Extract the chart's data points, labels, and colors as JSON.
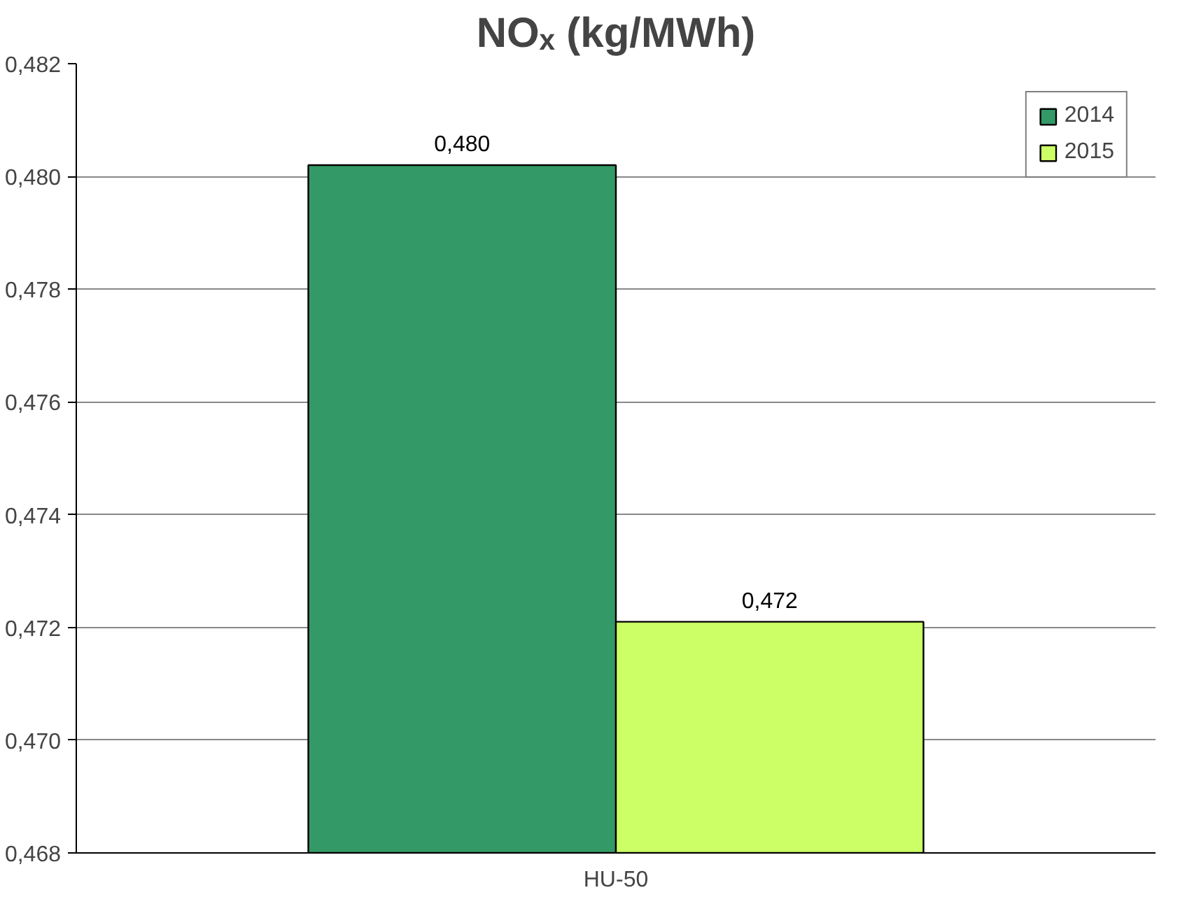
{
  "chart_data": {
    "type": "bar",
    "title": "NOₓ (kg/MWh)",
    "categories": [
      "HU-50"
    ],
    "series": [
      {
        "name": "2014",
        "color": "#339966",
        "values": [
          0.4802
        ],
        "value_labels": [
          "0,480"
        ]
      },
      {
        "name": "2015",
        "color": "#ccff66",
        "values": [
          0.4721
        ],
        "value_labels": [
          "0,472"
        ]
      }
    ],
    "ylim": [
      0.468,
      0.482
    ],
    "yticks": [
      {
        "value": 0.468,
        "label": "0,468"
      },
      {
        "value": 0.47,
        "label": "0,470"
      },
      {
        "value": 0.472,
        "label": "0,472"
      },
      {
        "value": 0.474,
        "label": "0,474"
      },
      {
        "value": 0.476,
        "label": "0,476"
      },
      {
        "value": 0.478,
        "label": "0,478"
      },
      {
        "value": 0.48,
        "label": "0,480"
      },
      {
        "value": 0.482,
        "label": "0,482"
      }
    ],
    "grid": "y",
    "legend": "top right"
  }
}
